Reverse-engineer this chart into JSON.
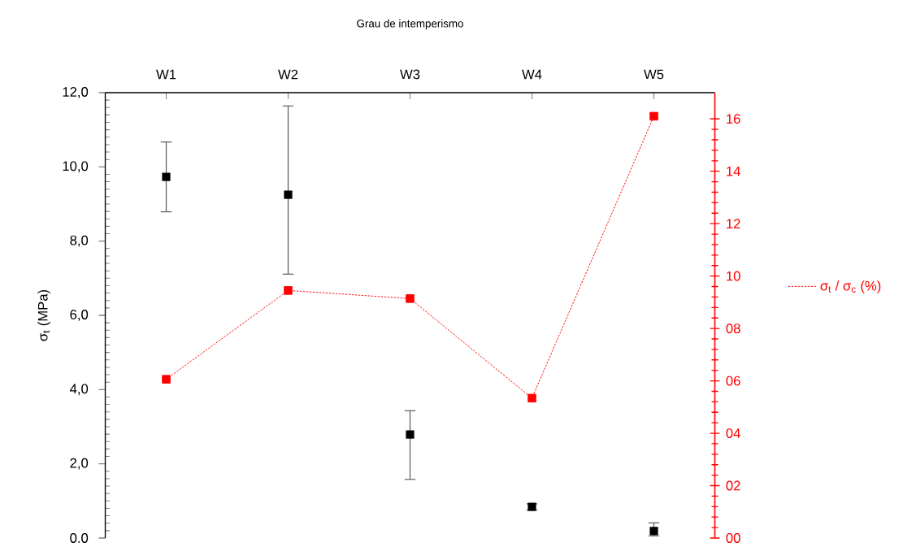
{
  "chart_data": {
    "type": "line",
    "xlabel": "Grau de intemperismo",
    "ylabel": "σ$_{t}$ (MPa)",
    "categories": [
      "W1",
      "W2",
      "W3",
      "W4",
      "W5"
    ],
    "series": [
      {
        "type": "scatter",
        "color": "#000000",
        "values": [
          9.73,
          9.25,
          2.79,
          0.84,
          0.19
        ],
        "errors": [
          [
            8.79,
            10.67
          ],
          [
            7.11,
            11.64
          ],
          [
            1.58,
            3.43
          ],
          [
            0.76,
            0.92
          ],
          [
            0.06,
            0.41
          ]
        ]
      },
      {
        "name": "σ$_{t}$ / σ$_{c}$ (%)",
        "color": "#ff0000",
        "values": [
          6.06,
          9.45,
          9.14,
          5.34,
          16.1
        ],
        "axis": "y2",
        "line_style": "dashed"
      }
    ],
    "ylim": [
      0,
      12
    ],
    "yticks": [
      {
        "value": 0,
        "label": "0.0"
      },
      {
        "value": 2,
        "label": "2,0"
      },
      {
        "value": 4,
        "label": "4,0"
      },
      {
        "value": 6,
        "label": "6,0"
      },
      {
        "value": 8,
        "label": "8,0"
      },
      {
        "value": 10,
        "label": "10,0"
      },
      {
        "value": 12,
        "label": "12,0"
      }
    ],
    "y2lim": [
      0,
      17
    ],
    "y2ticks": [
      {
        "value": 0,
        "label": "00"
      },
      {
        "value": 2,
        "label": "02"
      },
      {
        "value": 4,
        "label": "04"
      },
      {
        "value": 6,
        "label": "06"
      },
      {
        "value": 8,
        "label": "08"
      },
      10,
      12,
      14,
      16
    ],
    "marker": "square",
    "legend": "right"
  }
}
